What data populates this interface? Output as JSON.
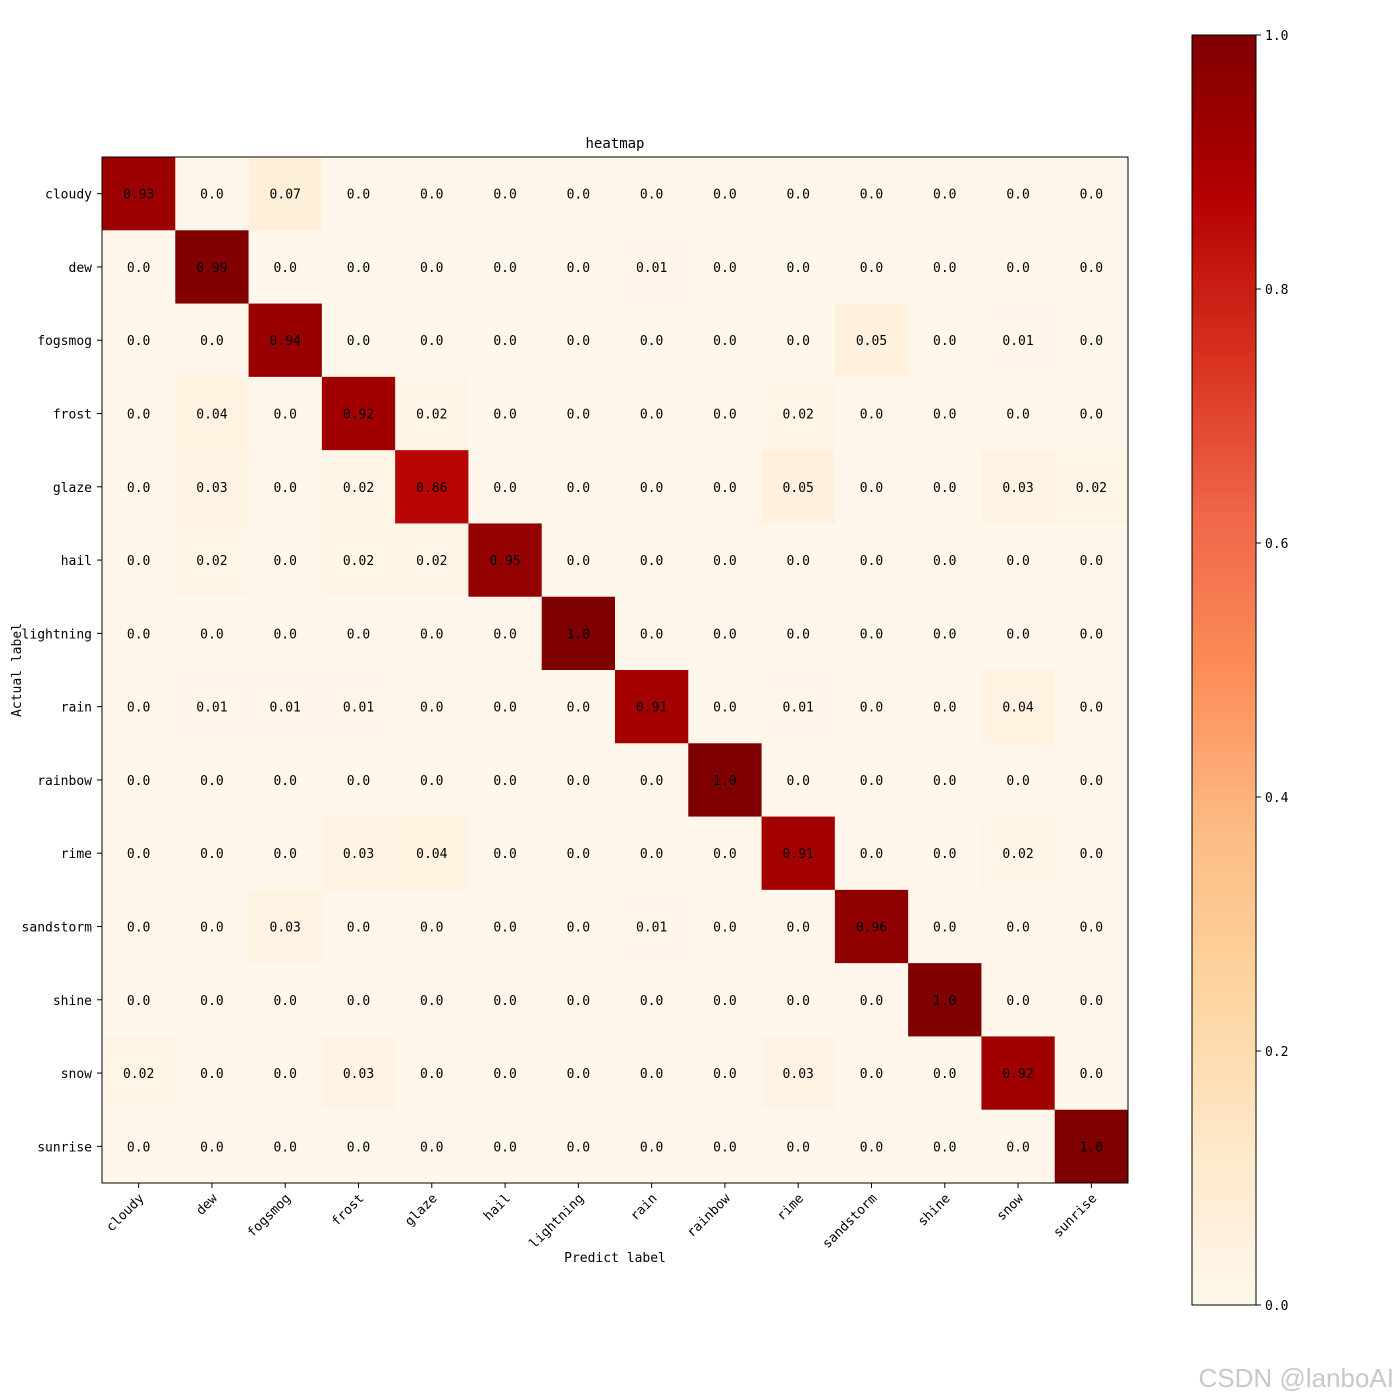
{
  "chart_data": {
    "type": "heatmap",
    "title": "heatmap",
    "xlabel": "Predict label",
    "ylabel": "Actual label",
    "x_categories": [
      "cloudy",
      "dew",
      "fogsmog",
      "frost",
      "glaze",
      "hail",
      "lightning",
      "rain",
      "rainbow",
      "rime",
      "sandstorm",
      "shine",
      "snow",
      "sunrise"
    ],
    "y_categories": [
      "cloudy",
      "dew",
      "fogsmog",
      "frost",
      "glaze",
      "hail",
      "lightning",
      "rain",
      "rainbow",
      "rime",
      "sandstorm",
      "shine",
      "snow",
      "sunrise"
    ],
    "values": [
      [
        0.93,
        0.0,
        0.07,
        0.0,
        0.0,
        0.0,
        0.0,
        0.0,
        0.0,
        0.0,
        0.0,
        0.0,
        0.0,
        0.0
      ],
      [
        0.0,
        0.99,
        0.0,
        0.0,
        0.0,
        0.0,
        0.0,
        0.01,
        0.0,
        0.0,
        0.0,
        0.0,
        0.0,
        0.0
      ],
      [
        0.0,
        0.0,
        0.94,
        0.0,
        0.0,
        0.0,
        0.0,
        0.0,
        0.0,
        0.0,
        0.05,
        0.0,
        0.01,
        0.0
      ],
      [
        0.0,
        0.04,
        0.0,
        0.92,
        0.02,
        0.0,
        0.0,
        0.0,
        0.0,
        0.02,
        0.0,
        0.0,
        0.0,
        0.0
      ],
      [
        0.0,
        0.03,
        0.0,
        0.02,
        0.86,
        0.0,
        0.0,
        0.0,
        0.0,
        0.05,
        0.0,
        0.0,
        0.03,
        0.02
      ],
      [
        0.0,
        0.02,
        0.0,
        0.02,
        0.02,
        0.95,
        0.0,
        0.0,
        0.0,
        0.0,
        0.0,
        0.0,
        0.0,
        0.0
      ],
      [
        0.0,
        0.0,
        0.0,
        0.0,
        0.0,
        0.0,
        1.0,
        0.0,
        0.0,
        0.0,
        0.0,
        0.0,
        0.0,
        0.0
      ],
      [
        0.0,
        0.01,
        0.01,
        0.01,
        0.0,
        0.0,
        0.0,
        0.91,
        0.0,
        0.01,
        0.0,
        0.0,
        0.04,
        0.0
      ],
      [
        0.0,
        0.0,
        0.0,
        0.0,
        0.0,
        0.0,
        0.0,
        0.0,
        1.0,
        0.0,
        0.0,
        0.0,
        0.0,
        0.0
      ],
      [
        0.0,
        0.0,
        0.0,
        0.03,
        0.04,
        0.0,
        0.0,
        0.0,
        0.0,
        0.91,
        0.0,
        0.0,
        0.02,
        0.0
      ],
      [
        0.0,
        0.0,
        0.03,
        0.0,
        0.0,
        0.0,
        0.0,
        0.01,
        0.0,
        0.0,
        0.96,
        0.0,
        0.0,
        0.0
      ],
      [
        0.0,
        0.0,
        0.0,
        0.0,
        0.0,
        0.0,
        0.0,
        0.0,
        0.0,
        0.0,
        0.0,
        1.0,
        0.0,
        0.0
      ],
      [
        0.02,
        0.0,
        0.0,
        0.03,
        0.0,
        0.0,
        0.0,
        0.0,
        0.0,
        0.03,
        0.0,
        0.0,
        0.92,
        0.0
      ],
      [
        0.0,
        0.0,
        0.0,
        0.0,
        0.0,
        0.0,
        0.0,
        0.0,
        0.0,
        0.0,
        0.0,
        0.0,
        0.0,
        1.0
      ]
    ],
    "labels": [
      [
        "0.93",
        "0.0",
        "0.07",
        "0.0",
        "0.0",
        "0.0",
        "0.0",
        "0.0",
        "0.0",
        "0.0",
        "0.0",
        "0.0",
        "0.0",
        "0.0"
      ],
      [
        "0.0",
        "0.99",
        "0.0",
        "0.0",
        "0.0",
        "0.0",
        "0.0",
        "0.01",
        "0.0",
        "0.0",
        "0.0",
        "0.0",
        "0.0",
        "0.0"
      ],
      [
        "0.0",
        "0.0",
        "0.94",
        "0.0",
        "0.0",
        "0.0",
        "0.0",
        "0.0",
        "0.0",
        "0.0",
        "0.05",
        "0.0",
        "0.01",
        "0.0"
      ],
      [
        "0.0",
        "0.04",
        "0.0",
        "0.92",
        "0.02",
        "0.0",
        "0.0",
        "0.0",
        "0.0",
        "0.02",
        "0.0",
        "0.0",
        "0.0",
        "0.0"
      ],
      [
        "0.0",
        "0.03",
        "0.0",
        "0.02",
        "0.86",
        "0.0",
        "0.0",
        "0.0",
        "0.0",
        "0.05",
        "0.0",
        "0.0",
        "0.03",
        "0.02"
      ],
      [
        "0.0",
        "0.02",
        "0.0",
        "0.02",
        "0.02",
        "0.95",
        "0.0",
        "0.0",
        "0.0",
        "0.0",
        "0.0",
        "0.0",
        "0.0",
        "0.0"
      ],
      [
        "0.0",
        "0.0",
        "0.0",
        "0.0",
        "0.0",
        "0.0",
        "1.0",
        "0.0",
        "0.0",
        "0.0",
        "0.0",
        "0.0",
        "0.0",
        "0.0"
      ],
      [
        "0.0",
        "0.01",
        "0.01",
        "0.01",
        "0.0",
        "0.0",
        "0.0",
        "0.91",
        "0.0",
        "0.01",
        "0.0",
        "0.0",
        "0.04",
        "0.0"
      ],
      [
        "0.0",
        "0.0",
        "0.0",
        "0.0",
        "0.0",
        "0.0",
        "0.0",
        "0.0",
        "1.0",
        "0.0",
        "0.0",
        "0.0",
        "0.0",
        "0.0"
      ],
      [
        "0.0",
        "0.0",
        "0.0",
        "0.03",
        "0.04",
        "0.0",
        "0.0",
        "0.0",
        "0.0",
        "0.91",
        "0.0",
        "0.0",
        "0.02",
        "0.0"
      ],
      [
        "0.0",
        "0.0",
        "0.03",
        "0.0",
        "0.0",
        "0.0",
        "0.0",
        "0.01",
        "0.0",
        "0.0",
        "0.96",
        "0.0",
        "0.0",
        "0.0"
      ],
      [
        "0.0",
        "0.0",
        "0.0",
        "0.0",
        "0.0",
        "0.0",
        "0.0",
        "0.0",
        "0.0",
        "0.0",
        "0.0",
        "1.0",
        "0.0",
        "0.0"
      ],
      [
        "0.02",
        "0.0",
        "0.0",
        "0.03",
        "0.0",
        "0.0",
        "0.0",
        "0.0",
        "0.0",
        "0.03",
        "0.0",
        "0.0",
        "0.92",
        "0.0"
      ],
      [
        "0.0",
        "0.0",
        "0.0",
        "0.0",
        "0.0",
        "0.0",
        "0.0",
        "0.0",
        "0.0",
        "0.0",
        "0.0",
        "0.0",
        "0.0",
        "1.0"
      ]
    ],
    "colormap": "OrRd",
    "colorbar": {
      "range": [
        0.0,
        1.0
      ],
      "ticks": [
        0.0,
        0.2,
        0.4,
        0.6,
        0.8,
        1.0
      ],
      "tick_labels": [
        "0.0",
        "0.2",
        "0.4",
        "0.6",
        "0.8",
        "1.0"
      ]
    }
  },
  "watermark": "CSDN @lanboAI"
}
